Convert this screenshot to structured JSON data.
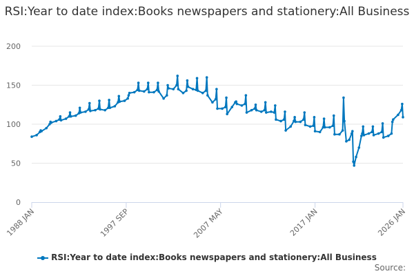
{
  "chart_data": {
    "type": "line",
    "title": "RSI:Year to date index:Books newspapers and stationery:All Business",
    "xlabel": "",
    "ylabel": "",
    "ylim": [
      0,
      200
    ],
    "xlim": [
      1988.0,
      2026.0
    ],
    "y_ticks": [
      "0",
      "50",
      "100",
      "150",
      "200"
    ],
    "y_tick_values": [
      0,
      50,
      100,
      150,
      200
    ],
    "x_ticks": [
      {
        "label": "1988 JAN",
        "value": 1988.0
      },
      {
        "label": "1997 SEP",
        "value": 1997.67
      },
      {
        "label": "2007 MAY",
        "value": 2007.33
      },
      {
        "label": "2017 JAN",
        "value": 2017.0
      },
      {
        "label": "2026 JAN",
        "value": 2026.0
      }
    ],
    "grid": true,
    "legend_position": "bottom",
    "series": [
      {
        "name": "RSI:Year to date index:Books newspapers and stationery:All Business",
        "color": "#0077be",
        "points": [
          [
            1988.0,
            84
          ],
          [
            1988.5,
            86
          ],
          [
            1988.83,
            90
          ],
          [
            1988.92,
            92
          ],
          [
            1989.0,
            91
          ],
          [
            1989.5,
            95
          ],
          [
            1989.83,
            100
          ],
          [
            1989.92,
            103
          ],
          [
            1990.0,
            102
          ],
          [
            1990.5,
            104
          ],
          [
            1990.83,
            106
          ],
          [
            1990.92,
            110
          ],
          [
            1991.0,
            105
          ],
          [
            1991.5,
            107
          ],
          [
            1991.83,
            110
          ],
          [
            1991.92,
            115
          ],
          [
            1992.0,
            110
          ],
          [
            1992.5,
            111
          ],
          [
            1992.83,
            114
          ],
          [
            1992.92,
            121
          ],
          [
            1993.0,
            115
          ],
          [
            1993.5,
            116
          ],
          [
            1993.83,
            119
          ],
          [
            1993.92,
            127
          ],
          [
            1994.0,
            117
          ],
          [
            1994.5,
            118
          ],
          [
            1994.83,
            120
          ],
          [
            1994.92,
            130
          ],
          [
            1995.0,
            119
          ],
          [
            1995.5,
            118
          ],
          [
            1995.83,
            121
          ],
          [
            1995.92,
            131
          ],
          [
            1996.0,
            121
          ],
          [
            1996.5,
            123
          ],
          [
            1996.83,
            128
          ],
          [
            1996.92,
            136
          ],
          [
            1997.0,
            129
          ],
          [
            1997.5,
            130
          ],
          [
            1997.83,
            133
          ],
          [
            1997.92,
            137
          ],
          [
            1998.0,
            140
          ],
          [
            1998.5,
            141
          ],
          [
            1998.83,
            144
          ],
          [
            1998.92,
            153
          ],
          [
            1999.0,
            143
          ],
          [
            1999.5,
            142
          ],
          [
            1999.83,
            145
          ],
          [
            1999.92,
            153
          ],
          [
            2000.0,
            141
          ],
          [
            2000.5,
            141
          ],
          [
            2000.83,
            144
          ],
          [
            2000.92,
            153
          ],
          [
            2001.0,
            142
          ],
          [
            2001.5,
            133
          ],
          [
            2001.83,
            137
          ],
          [
            2001.92,
            150
          ],
          [
            2002.0,
            146
          ],
          [
            2002.5,
            145
          ],
          [
            2002.83,
            150
          ],
          [
            2002.92,
            162
          ],
          [
            2003.0,
            145
          ],
          [
            2003.5,
            140
          ],
          [
            2003.83,
            143
          ],
          [
            2003.92,
            156
          ],
          [
            2004.0,
            148
          ],
          [
            2004.5,
            145
          ],
          [
            2004.83,
            144
          ],
          [
            2004.92,
            159
          ],
          [
            2005.0,
            143
          ],
          [
            2005.5,
            140
          ],
          [
            2005.83,
            143
          ],
          [
            2005.92,
            160
          ],
          [
            2006.0,
            137
          ],
          [
            2006.5,
            128
          ],
          [
            2006.83,
            132
          ],
          [
            2006.92,
            145
          ],
          [
            2007.0,
            120
          ],
          [
            2007.5,
            120
          ],
          [
            2007.83,
            122
          ],
          [
            2007.92,
            134
          ],
          [
            2008.0,
            113
          ],
          [
            2008.5,
            122
          ],
          [
            2008.83,
            128
          ],
          [
            2008.92,
            129
          ],
          [
            2009.0,
            126
          ],
          [
            2009.5,
            124
          ],
          [
            2009.83,
            126
          ],
          [
            2009.92,
            137
          ],
          [
            2010.0,
            115
          ],
          [
            2010.5,
            118
          ],
          [
            2010.83,
            120
          ],
          [
            2010.92,
            125
          ],
          [
            2011.0,
            118
          ],
          [
            2011.5,
            116
          ],
          [
            2011.83,
            118
          ],
          [
            2011.92,
            128
          ],
          [
            2012.0,
            115
          ],
          [
            2012.5,
            116
          ],
          [
            2012.83,
            115
          ],
          [
            2012.92,
            124
          ],
          [
            2013.0,
            106
          ],
          [
            2013.5,
            104
          ],
          [
            2013.83,
            106
          ],
          [
            2013.92,
            116
          ],
          [
            2014.0,
            92
          ],
          [
            2014.5,
            97
          ],
          [
            2014.83,
            104
          ],
          [
            2014.92,
            109
          ],
          [
            2015.0,
            103
          ],
          [
            2015.5,
            103
          ],
          [
            2015.83,
            106
          ],
          [
            2015.92,
            115
          ],
          [
            2016.0,
            99
          ],
          [
            2016.5,
            97
          ],
          [
            2016.83,
            98
          ],
          [
            2016.92,
            109
          ],
          [
            2017.0,
            91
          ],
          [
            2017.5,
            90
          ],
          [
            2017.83,
            96
          ],
          [
            2017.92,
            107
          ],
          [
            2018.0,
            96
          ],
          [
            2018.5,
            96
          ],
          [
            2018.83,
            98
          ],
          [
            2018.92,
            111
          ],
          [
            2019.0,
            87
          ],
          [
            2019.5,
            87
          ],
          [
            2019.83,
            92
          ],
          [
            2019.92,
            134
          ],
          [
            2020.0,
            104
          ],
          [
            2020.2,
            78
          ],
          [
            2020.5,
            80
          ],
          [
            2020.75,
            88
          ],
          [
            2020.83,
            91
          ],
          [
            2020.92,
            52
          ],
          [
            2021.0,
            47
          ],
          [
            2021.2,
            58
          ],
          [
            2021.5,
            70
          ],
          [
            2021.75,
            85
          ],
          [
            2021.83,
            88
          ],
          [
            2021.92,
            97
          ],
          [
            2022.0,
            86
          ],
          [
            2022.5,
            88
          ],
          [
            2022.83,
            90
          ],
          [
            2022.92,
            97
          ],
          [
            2023.0,
            86
          ],
          [
            2023.5,
            88
          ],
          [
            2023.83,
            90
          ],
          [
            2023.92,
            101
          ],
          [
            2024.0,
            83
          ],
          [
            2024.5,
            85
          ],
          [
            2024.83,
            88
          ],
          [
            2024.92,
            103
          ],
          [
            2025.0,
            106
          ],
          [
            2025.5,
            112
          ],
          [
            2025.83,
            118
          ],
          [
            2025.92,
            126
          ],
          [
            2026.0,
            109
          ]
        ]
      }
    ]
  },
  "legend": {
    "label": "RSI:Year to date index:Books newspapers and stationery:All Business"
  },
  "source_label": "Source:"
}
